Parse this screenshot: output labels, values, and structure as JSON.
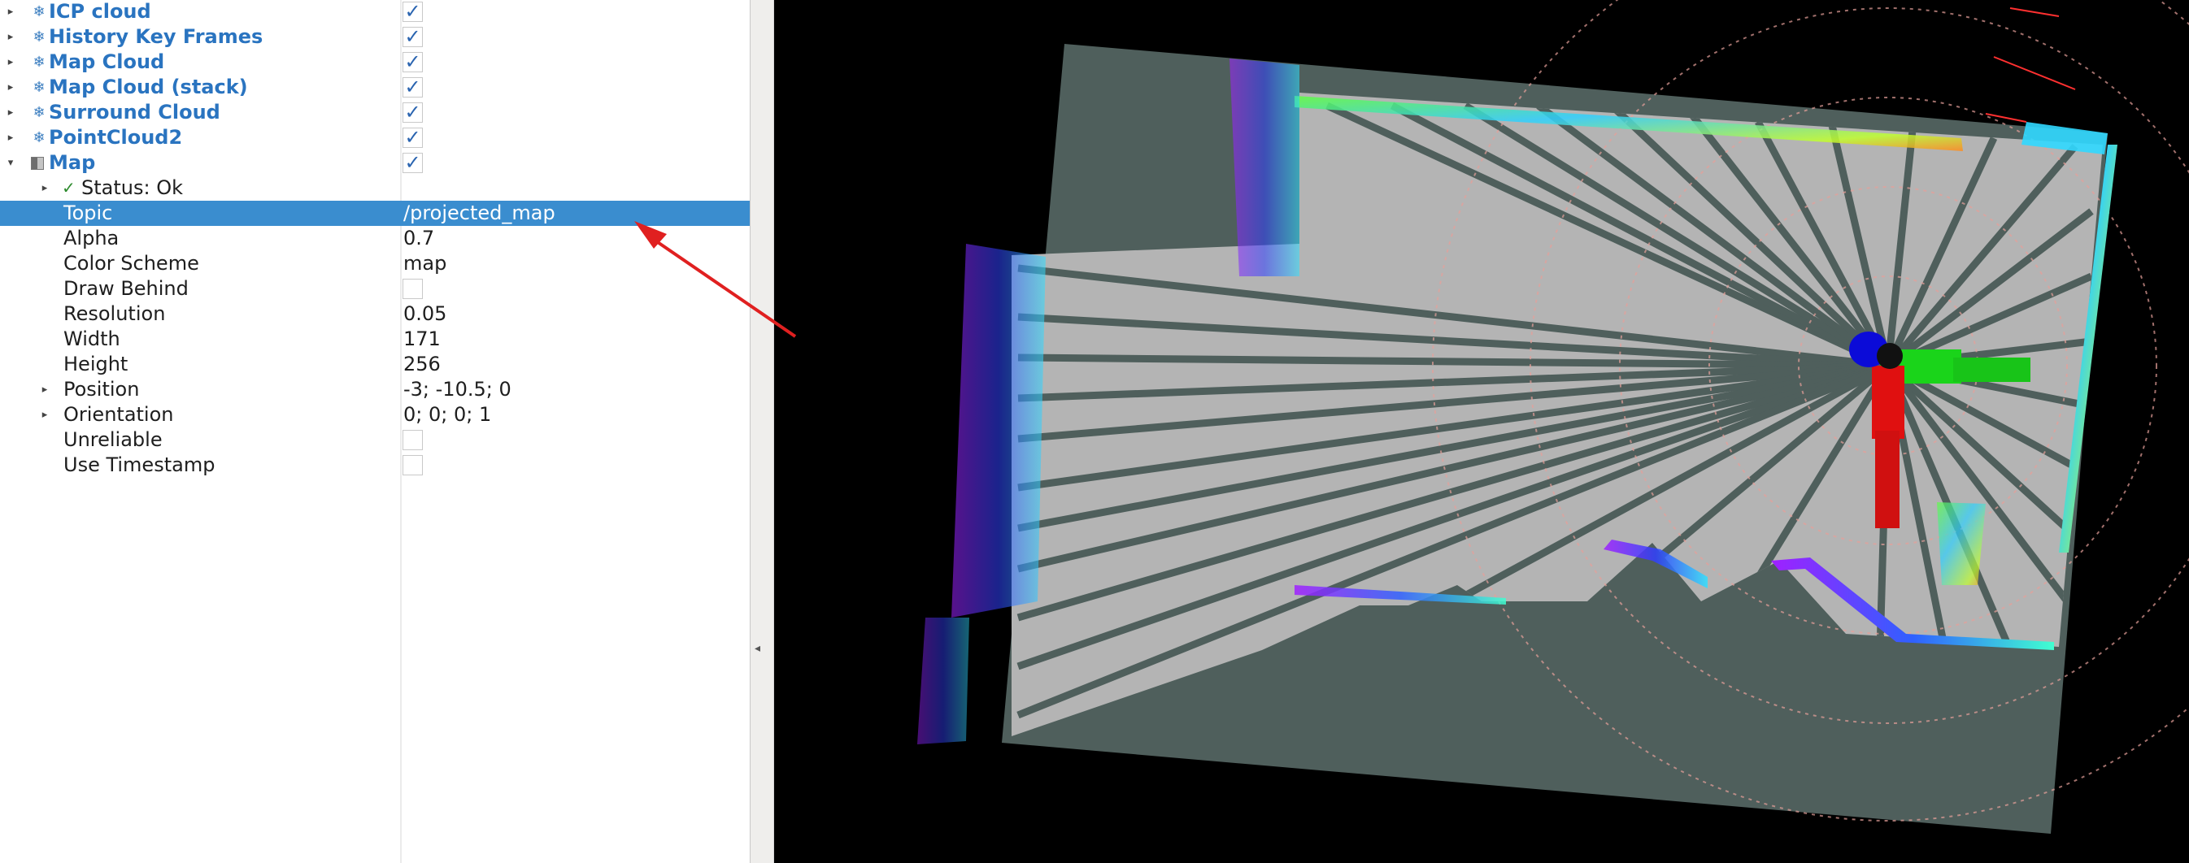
{
  "displays_panel": {
    "displays": [
      {
        "name": "ICP cloud",
        "checked": true,
        "icon": "pointcloud-icon"
      },
      {
        "name": "History Key Frames",
        "checked": true,
        "icon": "pointcloud-icon"
      },
      {
        "name": "Map Cloud",
        "checked": true,
        "icon": "pointcloud-icon"
      },
      {
        "name": "Map Cloud (stack)",
        "checked": true,
        "icon": "pointcloud-icon"
      },
      {
        "name": "Surround Cloud",
        "checked": true,
        "icon": "pointcloud-icon"
      },
      {
        "name": "PointCloud2",
        "checked": true,
        "icon": "pointcloud-icon"
      }
    ],
    "map_display": {
      "name": "Map",
      "checked": true,
      "icon": "map-icon",
      "status": "Status: Ok",
      "properties": {
        "topic": {
          "label": "Topic",
          "value": "/projected_map"
        },
        "alpha": {
          "label": "Alpha",
          "value": "0.7"
        },
        "color_scheme": {
          "label": "Color Scheme",
          "value": "map"
        },
        "draw_behind": {
          "label": "Draw Behind",
          "checked": false
        },
        "resolution": {
          "label": "Resolution",
          "value": "0.05"
        },
        "width": {
          "label": "Width",
          "value": "171"
        },
        "height": {
          "label": "Height",
          "value": "256"
        },
        "position": {
          "label": "Position",
          "value": "-3; -10.5; 0"
        },
        "orientation": {
          "label": "Orientation",
          "value": "0; 0; 0; 1"
        },
        "unreliable": {
          "label": "Unreliable",
          "checked": false
        },
        "use_timestamp": {
          "label": "Use Timestamp",
          "checked": false
        }
      }
    }
  },
  "colors": {
    "selection": "#3a8dcf",
    "display_name": "#2a74c0",
    "map_occupied": "#4f5f5c",
    "map_free": "#b4b4b4",
    "viewport_background": "#000000",
    "annotation_arrow": "#e02020"
  }
}
